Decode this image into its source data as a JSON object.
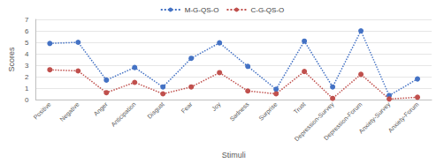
{
  "chart_data": {
    "type": "line",
    "x_label": "Stimuli",
    "y_label": "Scores",
    "categories": [
      "Positive",
      "Negative",
      "Anger",
      "Anticipation",
      "Disgust",
      "Fear",
      "Joy",
      "Sadness",
      "Surprise",
      "Trust",
      "Depression-Survey",
      "Depression-Forum",
      "Anxiety-Survey",
      "Anxiety-Forum"
    ],
    "series": [
      {
        "name": "M-G-QS-O",
        "color": "#4472c4",
        "values": [
          4.9,
          5.0,
          1.7,
          2.8,
          1.1,
          3.6,
          4.95,
          2.9,
          0.9,
          5.1,
          1.1,
          6.0,
          0.35,
          1.8
        ]
      },
      {
        "name": "C-G-QS-O",
        "color": "#c0504d",
        "values": [
          2.6,
          2.5,
          0.6,
          1.5,
          0.5,
          1.1,
          2.35,
          0.75,
          0.5,
          2.45,
          0.1,
          2.2,
          0.05,
          0.2
        ]
      }
    ],
    "ylim": [
      0,
      7
    ],
    "yticks": [
      0,
      1,
      2,
      3,
      4,
      5,
      6,
      7
    ],
    "grid": true,
    "legend": "top",
    "marker": "circle",
    "line_style": "dotted"
  }
}
